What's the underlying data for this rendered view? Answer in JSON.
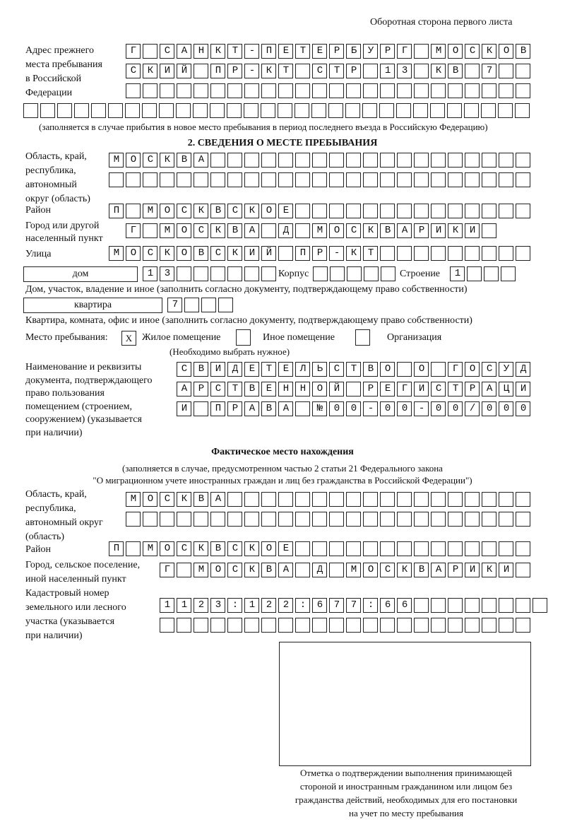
{
  "header": "Оборотная сторона первого листа",
  "prev_address": {
    "label": [
      "Адрес прежнего",
      "места пребывания",
      "в Российской",
      "Федерации"
    ],
    "rows": [
      "Г САНКТ-ПЕТЕРБУРГ МОСКОВ",
      "СКИЙ ПР-КТ СТР 13 КВ 7  ",
      "                        ",
      "                              "
    ],
    "note": "(заполняется в случае прибытия в новое место пребывания в период последнего въезда в Российскую Федерацию)"
  },
  "section2": {
    "title": "2. СВЕДЕНИЯ О МЕСТЕ ПРЕБЫВАНИЯ",
    "region_label": [
      "Область, край,",
      "республика,",
      "автономный",
      "округ (область)"
    ],
    "region_rows": [
      "МОСКВА                   ",
      "                         "
    ],
    "district_label": "Район",
    "district_row": "П МОСКВСКОЕ              ",
    "city_label": [
      "Город или другой",
      "населенный пункт"
    ],
    "city_row": "Г МОСКВА Д МОСКВАРИКИ ",
    "street_label": "Улица",
    "street_row": "МОСКОВСКИЙ ПР-КТ         ",
    "house": {
      "type": "дом",
      "number": "13      ",
      "korpus_label": "Корпус",
      "korpus": "     ",
      "building_label": "Строение",
      "building": "1   ",
      "note": "Дом, участок, владение и иное (заполнить согласно документу, подтверждающему право собственности)"
    },
    "apartment": {
      "type": "квартира",
      "number": "7   ",
      "note": "Квартира, комната, офис и иное (заполнить согласно документу, подтверждающему право собственности)"
    },
    "stay": {
      "label": "Место пребывания:",
      "options": [
        {
          "label": "Жилое помещение",
          "mark": "X"
        },
        {
          "label": "Иное помещение",
          "mark": ""
        },
        {
          "label": "Организация",
          "mark": ""
        }
      ],
      "note": "(Необходимо выбрать нужное)"
    },
    "doc_label": [
      "Наименование и реквизиты",
      "документа, подтверждающего",
      "право пользования",
      "помещением (строением,",
      "сооружением) (указывается",
      "при наличии)"
    ],
    "doc_rows": [
      "СВИДЕТЕЛЬСТВО О ГОСУД",
      "АРСТВЕННОЙ РЕГИСТРАЦИ",
      "И ПРАВА №00-00-00/000"
    ]
  },
  "actual": {
    "title": "Фактическое место нахождения",
    "note": [
      "(заполняется в случае, предусмотренном частью 2 статьи 21 Федерального закона",
      "\"О миграционном учете иностранных граждан и лиц без гражданства в Российской Федерации\")"
    ],
    "region_label": [
      "Область, край,",
      "республика,",
      "автономный округ",
      "(область)"
    ],
    "region_rows": [
      "МОСКВА                  ",
      "                        "
    ],
    "district_label": "Район",
    "district_row": "П МОСКВСКОЕ              ",
    "city_label": [
      "Город, сельское поселение,",
      "иной населенный пункт"
    ],
    "city_row": "Г МОСКВА Д МОСКВАРИКИ ",
    "cadastre_label": [
      "Кадастровый номер",
      "земельного или лесного",
      "участка (указывается",
      "при наличии)"
    ],
    "cadastre_rows": [
      "1123:122:677:66        ",
      "                      "
    ]
  },
  "confirmation": [
    "Отметка о подтверждении выполнения принимающей",
    "стороной и иностранным гражданином или лицом без",
    "гражданства действий, необходимых для его постановки",
    "на учет по месту пребывания"
  ]
}
